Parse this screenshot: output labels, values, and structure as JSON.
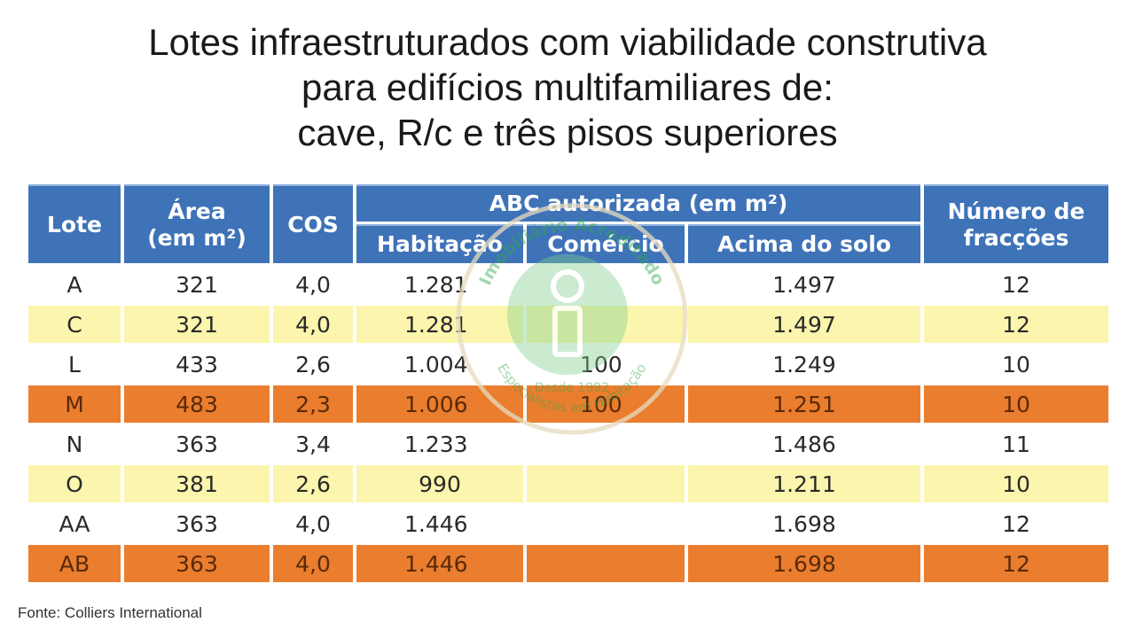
{
  "title": {
    "line1": "Lotes infraestruturados com viabilidade construtiva",
    "line2": "para edifícios multifamiliares de:",
    "line3": "cave, R/c e três pisos superiores"
  },
  "table": {
    "headers": {
      "lote": "Lote",
      "area_1": "Área",
      "area_2": "(em m²)",
      "cos": "COS",
      "abc": "ABC autorizada (em m²)",
      "habitacao": "Habitação",
      "comercio": "Comércio",
      "acima_solo": "Acima do solo",
      "fraccoes_1": "Número de",
      "fraccoes_2": "fracções"
    },
    "rows": [
      {
        "lote": "A",
        "area": "321",
        "cos": "4,0",
        "habitacao": "1.281",
        "comercio": "",
        "acima_solo": "1.497",
        "fraccoes": "12"
      },
      {
        "lote": "C",
        "area": "321",
        "cos": "4,0",
        "habitacao": "1.281",
        "comercio": "",
        "acima_solo": "1.497",
        "fraccoes": "12"
      },
      {
        "lote": "L",
        "area": "433",
        "cos": "2,6",
        "habitacao": "1.004",
        "comercio": "100",
        "acima_solo": "1.249",
        "fraccoes": "10"
      },
      {
        "lote": "M",
        "area": "483",
        "cos": "2,3",
        "habitacao": "1.006",
        "comercio": "100",
        "acima_solo": "1.251",
        "fraccoes": "10"
      },
      {
        "lote": "N",
        "area": "363",
        "cos": "3,4",
        "habitacao": "1.233",
        "comercio": "",
        "acima_solo": "1.486",
        "fraccoes": "11"
      },
      {
        "lote": "O",
        "area": "381",
        "cos": "2,6",
        "habitacao": "990",
        "comercio": "",
        "acima_solo": "1.211",
        "fraccoes": "10"
      },
      {
        "lote": "AA",
        "area": "363",
        "cos": "4,0",
        "habitacao": "1.446",
        "comercio": "",
        "acima_solo": "1.698",
        "fraccoes": "12"
      },
      {
        "lote": "AB",
        "area": "363",
        "cos": "4,0",
        "habitacao": "1.446",
        "comercio": "",
        "acima_solo": "1.698",
        "fraccoes": "12"
      }
    ]
  },
  "source": "Fonte: Colliers International",
  "watermark": {
    "text_top": "Imobiliário Acreditado",
    "text_bottom": "Especialistas em Habitação",
    "since": "Desde 1992"
  },
  "colors": {
    "header_blue": "#3f73b8",
    "row_yellow": "#fcf5ad",
    "row_orange": "#ea7d2e",
    "watermark_green": "#2ea84a"
  }
}
